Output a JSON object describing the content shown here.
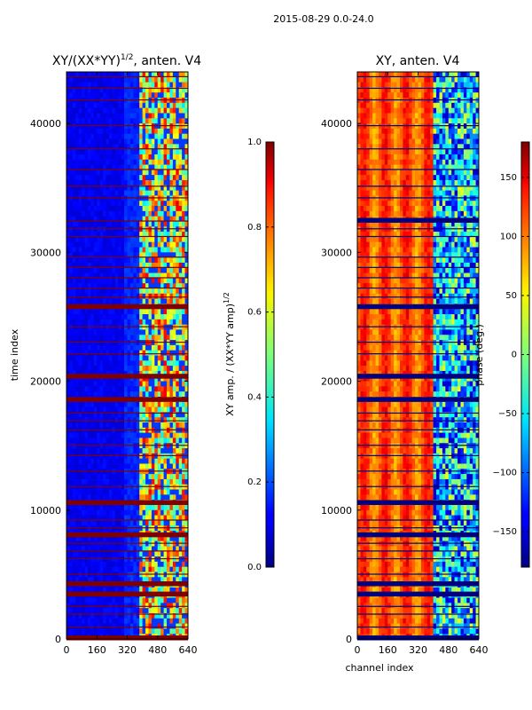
{
  "figure_title": "2015-08-29 0.0-24.0",
  "chart_data": [
    {
      "type": "heatmap",
      "title_prefix": "XY/(XX*YY)",
      "title_exponent": "1/2",
      "title_suffix": ", anten. V4",
      "xlabel": "",
      "ylabel": "time index",
      "xlim": [
        0,
        640
      ],
      "ylim": [
        0,
        44000
      ],
      "xticks": [
        0,
        160,
        320,
        480,
        640
      ],
      "yticks": [
        0,
        10000,
        20000,
        30000,
        40000
      ],
      "colormap": "jet",
      "colorbar": {
        "label_prefix": "XY amp. / (XX*YY amp)",
        "label_exponent": "1/2",
        "range": [
          0.0,
          1.0
        ],
        "ticks": [
          "0.0",
          "0.2",
          "0.4",
          "0.6",
          "0.8",
          "1.0"
        ],
        "tick_values": [
          0.0,
          0.2,
          0.4,
          0.6,
          0.8,
          1.0
        ]
      },
      "bad_row_fill_value": 1.0,
      "bad_rows_thick": [
        0,
        3400,
        4200,
        8000,
        10500,
        18500,
        20300,
        25700
      ],
      "bad_rows_thin": [
        900,
        1900,
        2500,
        5000,
        6200,
        6800,
        7400,
        8600,
        9200,
        11800,
        13000,
        14200,
        15000,
        16200,
        16900,
        17500,
        22100,
        23000,
        24200,
        26500,
        27200,
        28000,
        28800,
        29600,
        31200,
        31800,
        32400,
        34200,
        35100,
        36400,
        38000,
        39800,
        41800,
        42700,
        43600
      ],
      "background_value": 0.08,
      "high_band_x_range": [
        380,
        640
      ],
      "high_band_values": [
        0.35,
        0.9
      ]
    },
    {
      "type": "heatmap",
      "title": "XY, anten. V4",
      "xlabel": "channel index",
      "ylabel": "",
      "xlim": [
        0,
        640
      ],
      "ylim": [
        0,
        44000
      ],
      "xticks": [
        0,
        160,
        320,
        480,
        640
      ],
      "yticks": [
        0,
        10000,
        20000,
        30000,
        40000
      ],
      "colormap": "jet",
      "colorbar": {
        "label": "phase (deg.)",
        "range": [
          -180,
          180
        ],
        "ticks": [
          "−150",
          "−100",
          "−50",
          "0",
          "50",
          "100",
          "150"
        ],
        "tick_values": [
          -150,
          -100,
          -50,
          0,
          50,
          100,
          150
        ]
      },
      "bad_row_fill_value": -180,
      "bad_rows_thick": [
        0,
        3400,
        4200,
        8000,
        10500,
        18500,
        20300,
        25700,
        32400
      ],
      "bad_rows_thin": [
        900,
        1900,
        2500,
        5000,
        6200,
        6800,
        7400,
        8600,
        9200,
        11800,
        13000,
        14200,
        15000,
        16200,
        16900,
        17500,
        22100,
        23000,
        24200,
        26500,
        27200,
        28000,
        28800,
        29600,
        31200,
        31800,
        34200,
        35100,
        36400,
        38000,
        39800,
        41800,
        42700,
        43600
      ],
      "background_value_range": [
        60,
        150
      ],
      "high_band_x_range": [
        400,
        640
      ],
      "high_band_values": [
        -160,
        40
      ]
    }
  ]
}
